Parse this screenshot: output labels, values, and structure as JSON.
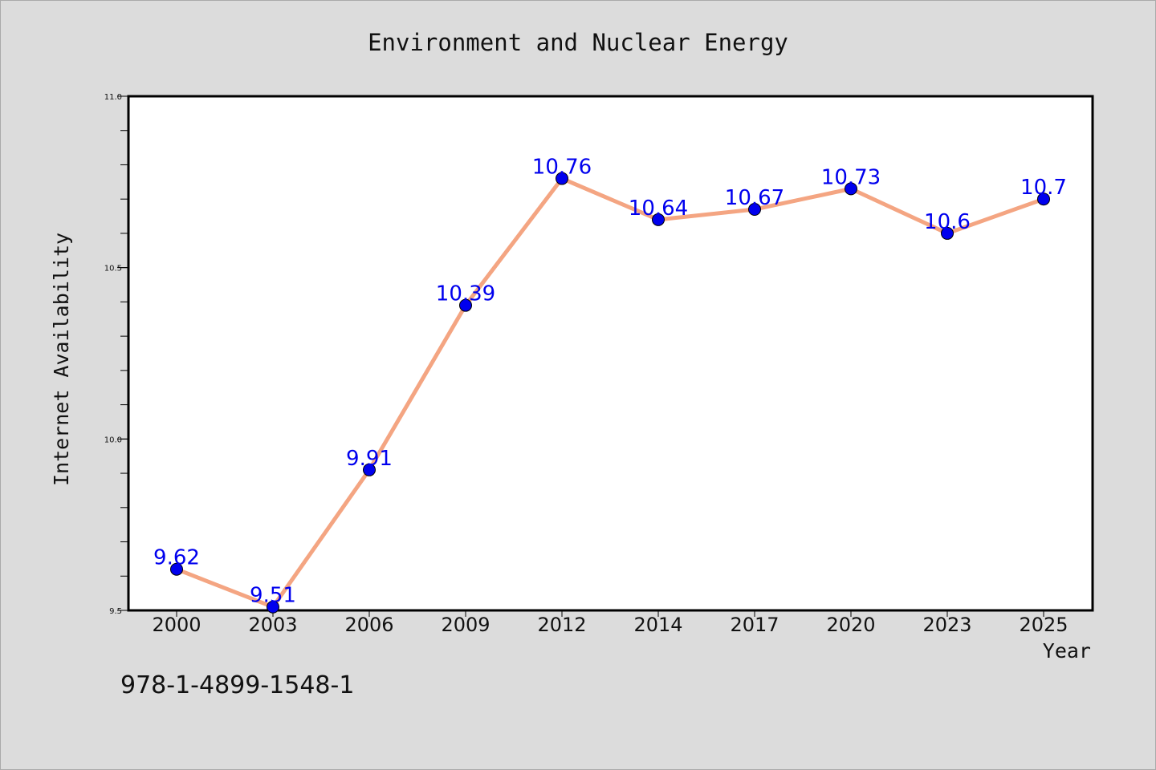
{
  "footer": {
    "isbn": "978-1-4899-1548-1"
  },
  "colors": {
    "line": "#f4a582",
    "marker": "#0000ee",
    "label": "#0000ee",
    "plot_background": "#ffffff",
    "page_background": "#dcdcdc"
  },
  "chart_data": {
    "type": "line",
    "title": "Environment and Nuclear Energy",
    "xlabel": "Year",
    "ylabel": "Internet Availability",
    "categories": [
      "2000",
      "2003",
      "2006",
      "2009",
      "2012",
      "2014",
      "2017",
      "2020",
      "2023",
      "2025"
    ],
    "series": [
      {
        "values": [
          9.62,
          9.51,
          9.91,
          10.39,
          10.76,
          10.64,
          10.67,
          10.73,
          10.6,
          10.7
        ],
        "labels": [
          "9.62",
          "9.51",
          "9.91",
          "10.39",
          "10.76",
          "10.64",
          "10.67",
          "10.73",
          "10.6",
          "10.7"
        ]
      }
    ],
    "ylim": [
      9.5,
      11.0
    ],
    "yticks": [
      "9.5",
      "10.0",
      "10.5",
      "11.0"
    ],
    "grid": false,
    "legend": "none"
  }
}
